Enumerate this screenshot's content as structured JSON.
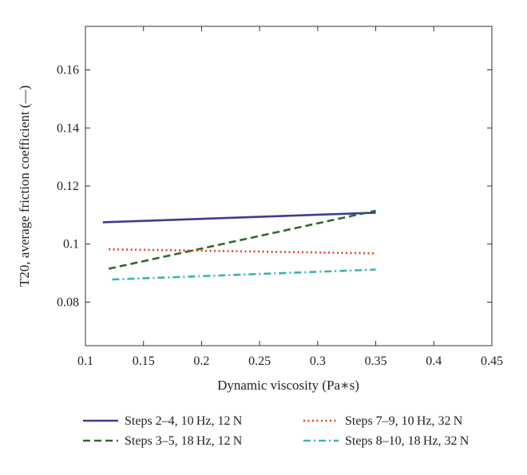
{
  "chart_data": {
    "type": "line",
    "title": "",
    "xlabel": "Dynamic viscosity (Pa∗s)",
    "ylabel": "T20, average friction coefficient (—)",
    "xlim": [
      0.1,
      0.45
    ],
    "ylim": [
      0.065,
      0.175
    ],
    "xticks": [
      0.1,
      0.15,
      0.2,
      0.25,
      0.3,
      0.35,
      0.4,
      0.45
    ],
    "xtick_labels": [
      "0.1",
      "0.15",
      "0.2",
      "0.25",
      "0.3",
      "0.35",
      "0.4",
      "0.45"
    ],
    "yticks": [
      0.08,
      0.1,
      0.12,
      0.14,
      0.16
    ],
    "ytick_labels": [
      "0.08",
      "0.1",
      "0.12",
      "0.14",
      "0.16"
    ],
    "grid": false,
    "legend_position": "bottom",
    "series": [
      {
        "name": "Steps 2–4, 10 Hz, 12 N",
        "x": [
          0.115,
          0.35
        ],
        "y": [
          0.1075,
          0.1108
        ],
        "color": "#3c3c96",
        "dash": "solid"
      },
      {
        "name": "Steps 3–5, 18 Hz, 12 N",
        "x": [
          0.12,
          0.35
        ],
        "y": [
          0.0915,
          0.1115
        ],
        "color": "#2c6b2c",
        "dash": "dashed"
      },
      {
        "name": "Steps 7–9, 10 Hz, 32 N",
        "x": [
          0.12,
          0.35
        ],
        "y": [
          0.0982,
          0.0968
        ],
        "color": "#e8402a",
        "dash": "dotted"
      },
      {
        "name": "Steps 8–10, 18 Hz, 32 N",
        "x": [
          0.123,
          0.35
        ],
        "y": [
          0.0878,
          0.0912
        ],
        "color": "#3bb3b0",
        "dash": "dashdot"
      }
    ]
  }
}
